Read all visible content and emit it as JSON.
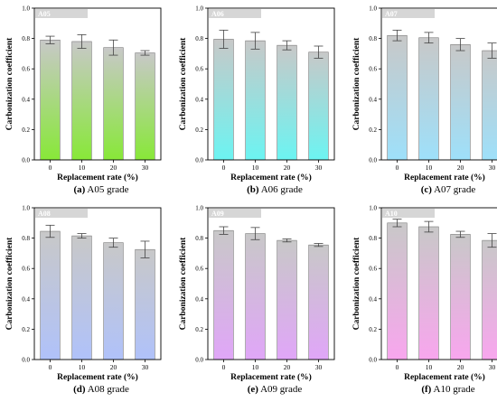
{
  "figure": {
    "panels": [
      {
        "caption_letter": "(a)",
        "caption_text": "A05 grade"
      },
      {
        "caption_letter": "(b)",
        "caption_text": "A06 grade"
      },
      {
        "caption_letter": "(c)",
        "caption_text": "A07 grade"
      },
      {
        "caption_letter": "(d)",
        "caption_text": "A08 grade"
      },
      {
        "caption_letter": "(e)",
        "caption_text": "A09 grade"
      },
      {
        "caption_letter": "(f)",
        "caption_text": "A10 grade"
      }
    ]
  },
  "chart_data": [
    {
      "type": "bar",
      "title": "A05",
      "xlabel": "Replacement rate (%)",
      "ylabel": "Carbonization coefficient",
      "categories": [
        "0",
        "10",
        "20",
        "30"
      ],
      "values": [
        0.79,
        0.78,
        0.74,
        0.705
      ],
      "errors": [
        0.025,
        0.045,
        0.05,
        0.015
      ],
      "ylim": [
        0.0,
        1.0
      ],
      "yticks": [
        "0.0",
        "0.2",
        "0.4",
        "0.6",
        "0.8",
        "1.0"
      ],
      "gradient_top": "#c8c8c8",
      "gradient_bottom": "#88e838",
      "label_box_color": "#d6d6d6"
    },
    {
      "type": "bar",
      "title": "A06",
      "xlabel": "Replacement rate (%)",
      "ylabel": "Carbonization coefficient",
      "categories": [
        "0",
        "10",
        "20",
        "30"
      ],
      "values": [
        0.795,
        0.785,
        0.755,
        0.71
      ],
      "errors": [
        0.06,
        0.055,
        0.03,
        0.04
      ],
      "ylim": [
        0.0,
        1.0
      ],
      "yticks": [
        "0.0",
        "0.2",
        "0.4",
        "0.6",
        "0.8",
        "1.0"
      ],
      "gradient_top": "#c8c8c8",
      "gradient_bottom": "#6cf4f2",
      "label_box_color": "#d6d6d6"
    },
    {
      "type": "bar",
      "title": "A07",
      "xlabel": "Replacement rate (%)",
      "ylabel": "Carbonization coefficient",
      "categories": [
        "0",
        "10",
        "20",
        "30"
      ],
      "values": [
        0.82,
        0.805,
        0.76,
        0.72
      ],
      "errors": [
        0.035,
        0.035,
        0.04,
        0.05
      ],
      "ylim": [
        0.0,
        1.0
      ],
      "yticks": [
        "0.0",
        "0.2",
        "0.4",
        "0.6",
        "0.8",
        "1.0"
      ],
      "gradient_top": "#c8c8c8",
      "gradient_bottom": "#9ee0fa",
      "label_box_color": "#d6d6d6"
    },
    {
      "type": "bar",
      "title": "A08",
      "xlabel": "Replacement rate (%)",
      "ylabel": "Carbonization coefficient",
      "categories": [
        "0",
        "10",
        "20",
        "30"
      ],
      "values": [
        0.845,
        0.815,
        0.77,
        0.725
      ],
      "errors": [
        0.04,
        0.015,
        0.03,
        0.055
      ],
      "ylim": [
        0.0,
        1.0
      ],
      "yticks": [
        "0.0",
        "0.2",
        "0.4",
        "0.6",
        "0.8",
        "1.0"
      ],
      "gradient_top": "#c8c8c8",
      "gradient_bottom": "#b0c2fa",
      "label_box_color": "#d6d6d6"
    },
    {
      "type": "bar",
      "title": "A09",
      "xlabel": "Replacement rate (%)",
      "ylabel": "Carbonization coefficient",
      "categories": [
        "0",
        "10",
        "20",
        "30"
      ],
      "values": [
        0.85,
        0.83,
        0.785,
        0.755
      ],
      "errors": [
        0.025,
        0.04,
        0.01,
        0.01
      ],
      "ylim": [
        0.0,
        1.0
      ],
      "yticks": [
        "0.0",
        "0.2",
        "0.4",
        "0.6",
        "0.8",
        "1.0"
      ],
      "gradient_top": "#c8c8c8",
      "gradient_bottom": "#e0a6f8",
      "label_box_color": "#d6d6d6"
    },
    {
      "type": "bar",
      "title": "A10",
      "xlabel": "Replacement rate (%)",
      "ylabel": "Carbonization coefficient",
      "categories": [
        "0",
        "10",
        "20",
        "30"
      ],
      "values": [
        0.9,
        0.875,
        0.825,
        0.785
      ],
      "errors": [
        0.025,
        0.035,
        0.02,
        0.045
      ],
      "ylim": [
        0.0,
        1.0
      ],
      "yticks": [
        "0.0",
        "0.2",
        "0.4",
        "0.6",
        "0.8",
        "1.0"
      ],
      "gradient_top": "#c8c8c8",
      "gradient_bottom": "#f8a6ee",
      "label_box_color": "#d6d6d6"
    }
  ]
}
